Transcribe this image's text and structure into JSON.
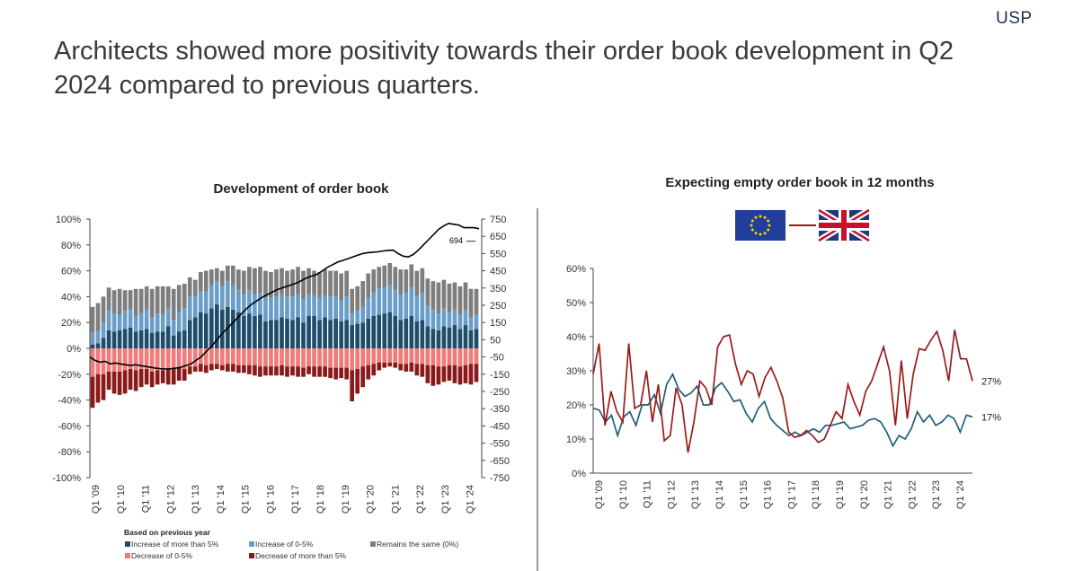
{
  "brand": {
    "logo_text": "USP"
  },
  "headline": "Architects showed more positivity towards their order book development in Q2 2024 compared to previous quarters.",
  "chart_data": [
    {
      "type": "bar",
      "stacked": true,
      "title": "Development of order book",
      "ylim": [
        -100,
        100
      ],
      "y_ticks": [
        "100%",
        "80%",
        "60%",
        "40%",
        "20%",
        "0%",
        "-20%",
        "-40%",
        "-60%",
        "-80%",
        "-100%"
      ],
      "y2lim": [
        -750,
        750
      ],
      "y2_ticks": [
        "750",
        "650",
        "550",
        "450",
        "350",
        "250",
        "150",
        "50",
        "-50",
        "-150",
        "-250",
        "-350",
        "-450",
        "-550",
        "-650",
        "-750"
      ],
      "x_labels": [
        "Q1 '09",
        "Q1 '10",
        "Q1 '11",
        "Q1 '12",
        "Q1 '13",
        "Q1 '14",
        "Q1 '15",
        "Q1 '16",
        "Q1 '17",
        "Q1 '18",
        "Q1 '19",
        "Q1 '20",
        "Q1 '21",
        "Q1 '22",
        "Q1 '23",
        "Q1 '24"
      ],
      "legend_title": "Based on previous year",
      "legend_position": "bottom",
      "series": [
        {
          "name": "Increase of more than 5%",
          "color": "#1e4d6b",
          "values": [
            3,
            4,
            8,
            14,
            13,
            14,
            15,
            16,
            13,
            14,
            15,
            12,
            13,
            13,
            17,
            10,
            13,
            14,
            22,
            24,
            28,
            27,
            31,
            34,
            30,
            32,
            30,
            28,
            25,
            27,
            25,
            26,
            21,
            22,
            22,
            24,
            23,
            22,
            24,
            20,
            25,
            25,
            22,
            24,
            22,
            23,
            21,
            22,
            18,
            19,
            20,
            23,
            25,
            26,
            27,
            28,
            25,
            22,
            23,
            25,
            21,
            22,
            17,
            15,
            14,
            17,
            16,
            18,
            15,
            18,
            14,
            15
          ]
        },
        {
          "name": "Increase of 0-5%",
          "color": "#6a9ec8",
          "values": [
            9,
            9,
            12,
            15,
            14,
            12,
            14,
            14,
            12,
            13,
            15,
            12,
            14,
            13,
            14,
            12,
            15,
            17,
            18,
            16,
            16,
            17,
            18,
            18,
            18,
            20,
            19,
            17,
            17,
            18,
            17,
            17,
            18,
            17,
            18,
            18,
            17,
            18,
            18,
            18,
            17,
            16,
            17,
            17,
            18,
            17,
            16,
            18,
            9,
            10,
            12,
            16,
            18,
            20,
            20,
            21,
            20,
            20,
            20,
            22,
            20,
            21,
            16,
            15,
            13,
            14,
            12,
            12,
            11,
            12,
            10,
            11
          ]
        },
        {
          "name": "Remains the same  (0%)",
          "color": "#7e7e7e",
          "values": [
            20,
            22,
            20,
            18,
            18,
            20,
            16,
            15,
            21,
            19,
            18,
            22,
            21,
            22,
            17,
            24,
            21,
            19,
            15,
            13,
            15,
            16,
            12,
            10,
            12,
            12,
            15,
            16,
            18,
            18,
            20,
            20,
            21,
            20,
            21,
            20,
            20,
            21,
            21,
            22,
            20,
            19,
            20,
            20,
            20,
            20,
            21,
            20,
            19,
            19,
            20,
            19,
            18,
            17,
            17,
            17,
            18,
            19,
            18,
            18,
            19,
            19,
            21,
            22,
            24,
            22,
            22,
            21,
            22,
            21,
            22,
            20
          ]
        },
        {
          "name": "Decrease of 0-5%",
          "color": "#f07b7b",
          "values": [
            -22,
            -20,
            -20,
            -18,
            -18,
            -18,
            -17,
            -16,
            -17,
            -16,
            -16,
            -18,
            -17,
            -17,
            -16,
            -16,
            -15,
            -16,
            -14,
            -14,
            -12,
            -13,
            -12,
            -12,
            -13,
            -12,
            -12,
            -13,
            -13,
            -13,
            -13,
            -14,
            -14,
            -14,
            -14,
            -13,
            -14,
            -14,
            -14,
            -15,
            -14,
            -14,
            -14,
            -14,
            -15,
            -15,
            -15,
            -15,
            -17,
            -16,
            -14,
            -13,
            -12,
            -11,
            -11,
            -11,
            -11,
            -12,
            -12,
            -11,
            -12,
            -12,
            -13,
            -13,
            -14,
            -14,
            -13,
            -13,
            -14,
            -13,
            -12,
            -12
          ]
        },
        {
          "name": "Decrease of more than 5%",
          "color": "#8a1a1a",
          "values": [
            -24,
            -22,
            -20,
            -14,
            -17,
            -18,
            -18,
            -16,
            -16,
            -14,
            -12,
            -12,
            -11,
            -10,
            -12,
            -12,
            -10,
            -9,
            -6,
            -4,
            -6,
            -6,
            -5,
            -4,
            -4,
            -6,
            -6,
            -6,
            -6,
            -7,
            -8,
            -8,
            -7,
            -7,
            -7,
            -8,
            -8,
            -7,
            -8,
            -7,
            -6,
            -8,
            -8,
            -8,
            -8,
            -9,
            -8,
            -9,
            -24,
            -19,
            -16,
            -11,
            -9,
            -6,
            -4,
            -3,
            -4,
            -5,
            -6,
            -7,
            -9,
            -10,
            -14,
            -16,
            -14,
            -12,
            -12,
            -14,
            -14,
            -14,
            -16,
            -14
          ]
        },
        {
          "name": "",
          "type": "line",
          "axis": "y2",
          "color": "#000000",
          "values": [
            -50,
            -70,
            -80,
            -75,
            -90,
            -85,
            -90,
            -95,
            -100,
            -95,
            -100,
            -105,
            -110,
            -115,
            -118,
            -120,
            -118,
            -115,
            -110,
            -100,
            -90,
            -70,
            -50,
            -20,
            10,
            45,
            80,
            110,
            140,
            170,
            200,
            230,
            255,
            275,
            295,
            310,
            325,
            340,
            350,
            360,
            370,
            380,
            395,
            410,
            420,
            430,
            450,
            470,
            485,
            500,
            510,
            520,
            530,
            540,
            550,
            555,
            558,
            560,
            565,
            568,
            570,
            550,
            535,
            530,
            545,
            570,
            600,
            630,
            660,
            690,
            710,
            725,
            720,
            715,
            700,
            700,
            700,
            694
          ]
        }
      ],
      "line_last_label": "694"
    },
    {
      "type": "line",
      "title": "Expecting empty order book in 12 months",
      "ylim": [
        0,
        60
      ],
      "y_ticks": [
        "60%",
        "50%",
        "40%",
        "30%",
        "20%",
        "10%",
        "0%"
      ],
      "x_labels": [
        "Q1 '09",
        "Q1 '10",
        "Q1 '11",
        "Q1 '12",
        "Q1 '13",
        "Q1 '14",
        "Q1 '15",
        "Q1 '16",
        "Q1 '17",
        "Q1 '18",
        "Q1 '19",
        "Q1 '20",
        "Q1 '21",
        "Q1 '22",
        "Q1 '23",
        "Q1 '24"
      ],
      "legend": {
        "eu_flag_icon": "eu-flag-icon",
        "uk_flag_icon": "uk-flag-icon"
      },
      "series": [
        {
          "name": "",
          "color": "#1f5f7a",
          "last_label": "17%",
          "values": [
            19,
            18.5,
            15,
            17,
            11,
            16.5,
            18,
            14,
            20,
            20,
            23,
            17.5,
            26,
            29,
            24.5,
            22.5,
            23.5,
            25.5,
            20,
            20,
            25,
            26.5,
            24,
            21,
            21.5,
            17.5,
            15,
            19,
            21,
            16,
            14,
            12.5,
            11,
            12,
            11,
            12,
            13,
            12,
            14,
            14,
            14.5,
            15,
            13,
            13.5,
            14,
            15.5,
            16,
            15,
            12,
            8,
            11,
            10,
            13,
            18,
            15,
            17,
            14,
            15,
            17,
            16,
            12,
            17,
            16.5
          ]
        },
        {
          "name": "",
          "color": "#9a1b1b",
          "last_label": "27%",
          "values": [
            29,
            38,
            14,
            24,
            18,
            15,
            38,
            19,
            20,
            30,
            15,
            26,
            9.5,
            11,
            25,
            20,
            6,
            15,
            27,
            25,
            20,
            37,
            40,
            40.5,
            32,
            26,
            30,
            29,
            22.5,
            28,
            31,
            27,
            22,
            12,
            10.5,
            11,
            12.5,
            11,
            9,
            10,
            14,
            18,
            16,
            26,
            21,
            17,
            24,
            27,
            32,
            37,
            30,
            14,
            33,
            16,
            29,
            36.5,
            36,
            39,
            41.5,
            36,
            27,
            42,
            33.5,
            33.5,
            27
          ]
        }
      ]
    }
  ]
}
